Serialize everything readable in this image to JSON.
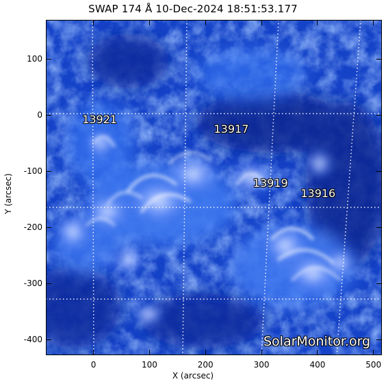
{
  "title": "SWAP 174 Å 10-Dec-2024 18:51:53.177",
  "x_axis": {
    "label": "X (arcsec)",
    "ticks": [
      "0",
      "100",
      "200",
      "300",
      "400",
      "500"
    ],
    "range": [
      -85,
      515
    ]
  },
  "y_axis": {
    "label": "Y (arcsec)",
    "ticks": [
      "100",
      "0",
      "-100",
      "-200",
      "-300",
      "-400"
    ],
    "range": [
      -428,
      170
    ]
  },
  "active_regions": [
    {
      "id": "13921",
      "x_arcsec": -20,
      "y_arcsec": -8
    },
    {
      "id": "13917",
      "x_arcsec": 215,
      "y_arcsec": -25
    },
    {
      "id": "13919",
      "x_arcsec": 285,
      "y_arcsec": -122
    },
    {
      "id": "13916",
      "x_arcsec": 370,
      "y_arcsec": -140
    }
  ],
  "watermark": "SolarMonitor.org",
  "colors": {
    "disk_dark": "#0a2aa0",
    "disk_mid": "#2b5fe0",
    "disk_bright": "#dfe8ff"
  }
}
